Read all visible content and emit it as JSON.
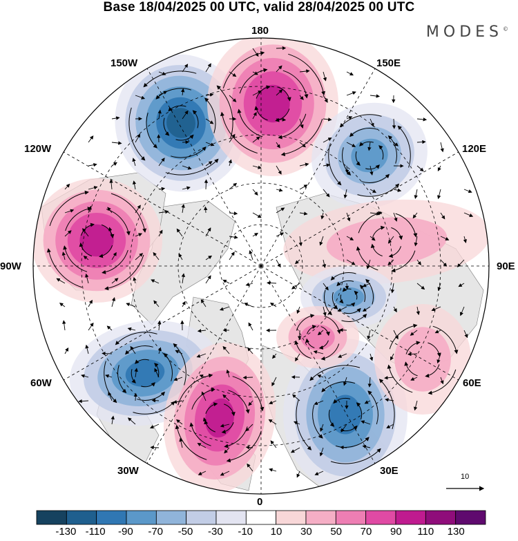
{
  "header": {
    "title": "Base 18/04/2025 00 UTC, valid 28/04/2025 00 UTC",
    "brand": "MODES",
    "brand_mark": "©"
  },
  "map": {
    "projection": "north-polar-stereographic",
    "longitude_labels": {
      "lon_180": "180",
      "lon_150e": "150E",
      "lon_120e": "120E",
      "lon_90e": "90E",
      "lon_60e": "60E",
      "lon_30e": "30E",
      "lon_0": "0",
      "lon_30w": "30W",
      "lon_60w": "60W",
      "lon_90w": "90W",
      "lon_120w": "120W",
      "lon_150w": "150W"
    },
    "anomaly_centers": [
      {
        "sign": "negative",
        "lon": "150W",
        "peak": -110
      },
      {
        "sign": "positive",
        "lon": "180",
        "peak": 90
      },
      {
        "sign": "negative",
        "lon": "140E",
        "peak": -70
      },
      {
        "sign": "positive",
        "lon": "95W",
        "peak": 90
      },
      {
        "sign": "positive",
        "lon": "100E",
        "peak": 30
      },
      {
        "sign": "negative",
        "lon": "60W",
        "peak": -90
      },
      {
        "sign": "positive",
        "lon": "20W",
        "peak": 90
      },
      {
        "sign": "negative",
        "lon": "30E",
        "peak": -90
      },
      {
        "sign": "positive",
        "lon": "60E",
        "peak": 30
      },
      {
        "sign": "negative",
        "lon": "80E",
        "peak": -70
      },
      {
        "sign": "positive",
        "lon": "50E",
        "peak": 50
      }
    ],
    "reference_vector": {
      "label": "10"
    }
  },
  "colorbar": {
    "ticks": [
      "-130",
      "-110",
      "-90",
      "-70",
      "-50",
      "-30",
      "-10",
      "10",
      "30",
      "50",
      "70",
      "90",
      "110",
      "130"
    ],
    "colors": [
      "#16425f",
      "#1f5f8e",
      "#3077b3",
      "#5b98c9",
      "#90b4da",
      "#c2cde6",
      "#e3e4f1",
      "#ffffff",
      "#f8d7d8",
      "#f5aec5",
      "#ee7eb3",
      "#e04aa4",
      "#bf1b8f",
      "#8f0d7a",
      "#5f0a6e"
    ]
  }
}
